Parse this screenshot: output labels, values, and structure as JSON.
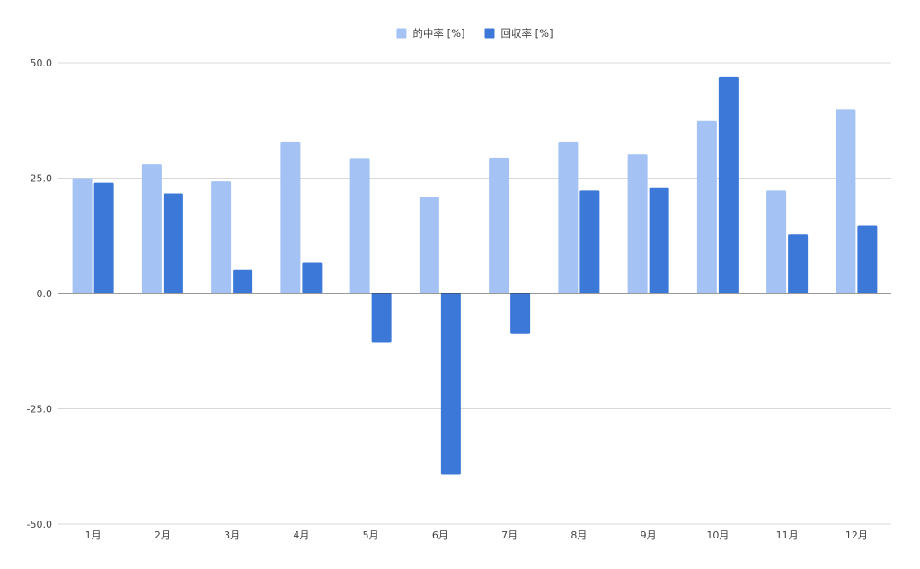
{
  "chart_data": {
    "type": "bar",
    "title": "",
    "xlabel": "",
    "ylabel": "",
    "categories": [
      "1月",
      "2月",
      "3月",
      "4月",
      "5月",
      "6月",
      "7月",
      "8月",
      "9月",
      "10月",
      "11月",
      "12月"
    ],
    "series": [
      {
        "name": "的中率 [%]",
        "color": "#a4c2f4",
        "values": [
          25.0,
          28.0,
          24.3,
          32.9,
          29.3,
          21.0,
          29.4,
          32.9,
          30.1,
          37.4,
          22.3,
          39.8
        ]
      },
      {
        "name": "回収率 [%]",
        "color": "#3c78d8",
        "values": [
          24.0,
          21.7,
          5.1,
          6.7,
          -10.6,
          -39.2,
          -8.7,
          22.3,
          23.0,
          46.9,
          12.8,
          14.7
        ]
      }
    ],
    "ylim": [
      -50,
      50
    ],
    "yticks": [
      "50.0",
      "25.0",
      "0.0",
      "-25.0",
      "-50.0"
    ],
    "ytick_values": [
      50,
      25,
      0,
      -25,
      -50
    ],
    "grid": true,
    "legend_position": "top-center",
    "colors": {
      "grid": "#d9d9d9",
      "zero_line": "#333333",
      "text": "#444444"
    }
  }
}
